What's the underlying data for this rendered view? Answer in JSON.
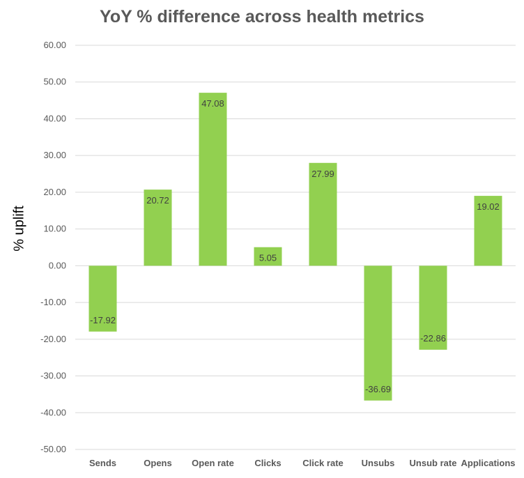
{
  "chart_data": {
    "type": "bar",
    "title": "YoY % difference across health metrics",
    "xlabel": "",
    "ylabel": "% uplift",
    "categories": [
      "Sends",
      "Opens",
      "Open rate",
      "Clicks",
      "Click rate",
      "Unsubs",
      "Unsub rate",
      "Applications"
    ],
    "values": [
      -17.92,
      20.72,
      47.08,
      5.05,
      27.99,
      -36.69,
      -22.86,
      19.02
    ],
    "ylim": [
      -50,
      60
    ],
    "yticks": [
      60,
      50,
      40,
      30,
      20,
      10,
      0,
      -10,
      -20,
      -30,
      -40,
      -50
    ],
    "ytick_labels": [
      "60.00",
      "50.00",
      "40.00",
      "30.00",
      "20.00",
      "10.00",
      "0.00",
      "-10.00",
      "-20.00",
      "-30.00",
      "-40.00",
      "-50.00"
    ],
    "data_labels": [
      "-17.92",
      "20.72",
      "47.08",
      "5.05",
      "27.99",
      "-36.69",
      "-22.86",
      "19.02"
    ],
    "grid": true,
    "legend": "none",
    "bar_color": "#92d050",
    "grid_color": "#d9d9d9"
  }
}
